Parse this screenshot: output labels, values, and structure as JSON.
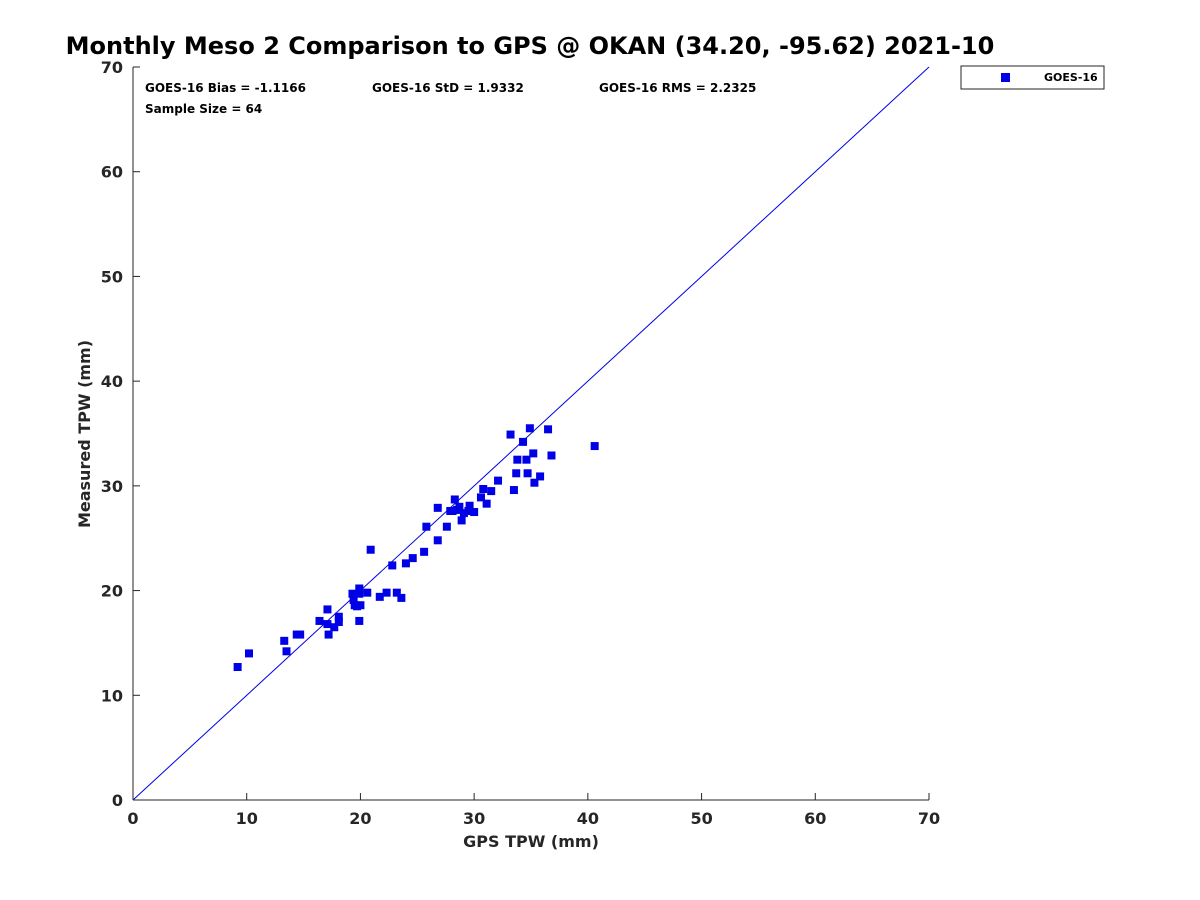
{
  "chart_data": {
    "type": "scatter",
    "title": "Monthly Meso 2 Comparison to GPS @ OKAN (34.20, -95.62) 2021-10",
    "xlabel": "GPS TPW (mm)",
    "ylabel": "Measured TPW (mm)",
    "xlim": [
      0,
      70
    ],
    "ylim": [
      0,
      70
    ],
    "xticks": [
      "0",
      "10",
      "20",
      "30",
      "40",
      "50",
      "60",
      "70"
    ],
    "yticks": [
      "0",
      "10",
      "20",
      "30",
      "40",
      "50",
      "60",
      "70"
    ],
    "grid": false,
    "legend_position": "outside-top-right",
    "reference_line": {
      "name": "1:1 line",
      "from": [
        0,
        0
      ],
      "to": [
        70,
        70
      ],
      "color": "#0000e6"
    },
    "stats": {
      "bias": "GOES-16 Bias = -1.1166",
      "std": "GOES-16 StD = 1.9332",
      "rms": "GOES-16 RMS = 2.2325",
      "sample": "Sample Size = 64"
    },
    "series": [
      {
        "name": "GOES-16",
        "color": "#0000e6",
        "marker": "square",
        "points": [
          [
            9.2,
            12.7
          ],
          [
            10.2,
            14.0
          ],
          [
            13.3,
            15.2
          ],
          [
            13.5,
            14.2
          ],
          [
            14.4,
            15.8
          ],
          [
            14.7,
            15.8
          ],
          [
            16.4,
            17.1
          ],
          [
            17.1,
            16.8
          ],
          [
            17.1,
            18.2
          ],
          [
            17.2,
            15.8
          ],
          [
            17.7,
            16.5
          ],
          [
            18.1,
            17.5
          ],
          [
            18.1,
            17.0
          ],
          [
            19.3,
            19.7
          ],
          [
            19.4,
            19.1
          ],
          [
            19.5,
            18.6
          ],
          [
            19.7,
            18.5
          ],
          [
            19.9,
            20.2
          ],
          [
            19.9,
            19.7
          ],
          [
            20.0,
            18.6
          ],
          [
            19.9,
            17.1
          ],
          [
            20.6,
            19.8
          ],
          [
            20.9,
            23.9
          ],
          [
            21.7,
            19.4
          ],
          [
            22.3,
            19.8
          ],
          [
            22.8,
            22.4
          ],
          [
            23.2,
            19.8
          ],
          [
            23.6,
            19.3
          ],
          [
            24.0,
            22.6
          ],
          [
            24.6,
            23.1
          ],
          [
            25.6,
            23.7
          ],
          [
            25.8,
            26.1
          ],
          [
            26.8,
            27.9
          ],
          [
            26.8,
            24.8
          ],
          [
            27.6,
            26.1
          ],
          [
            27.9,
            27.6
          ],
          [
            28.3,
            28.7
          ],
          [
            28.5,
            27.7
          ],
          [
            28.7,
            28.0
          ],
          [
            28.9,
            26.7
          ],
          [
            29.1,
            27.4
          ],
          [
            29.6,
            28.1
          ],
          [
            30.0,
            27.5
          ],
          [
            30.6,
            28.9
          ],
          [
            30.8,
            29.7
          ],
          [
            31.1,
            28.3
          ],
          [
            31.5,
            29.5
          ],
          [
            32.1,
            30.5
          ],
          [
            33.2,
            34.9
          ],
          [
            33.5,
            29.6
          ],
          [
            33.7,
            31.2
          ],
          [
            33.8,
            32.5
          ],
          [
            34.3,
            34.2
          ],
          [
            34.6,
            32.5
          ],
          [
            34.7,
            31.2
          ],
          [
            34.9,
            35.5
          ],
          [
            35.2,
            33.1
          ],
          [
            35.3,
            30.3
          ],
          [
            35.8,
            30.9
          ],
          [
            36.5,
            35.4
          ],
          [
            36.8,
            32.9
          ],
          [
            40.6,
            33.8
          ],
          [
            28.1,
            27.6
          ],
          [
            29.5,
            27.6
          ]
        ]
      }
    ]
  }
}
